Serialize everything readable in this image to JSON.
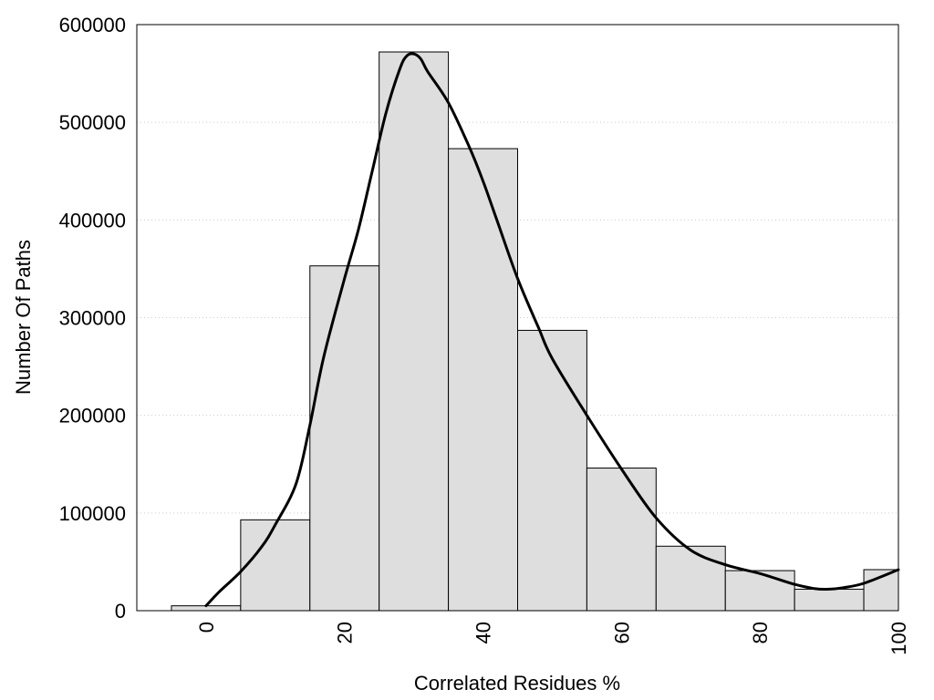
{
  "chart_data": {
    "type": "bar",
    "subtype": "histogram-with-density-curve",
    "title": "",
    "xlabel": "Correlated Residues %",
    "ylabel": "Number Of Paths",
    "xlim": [
      -10,
      100
    ],
    "ylim": [
      0,
      600000
    ],
    "x_ticks": [
      0,
      20,
      40,
      60,
      80,
      100
    ],
    "x_tick_labels": [
      "0",
      "20",
      "40",
      "60",
      "80",
      "100"
    ],
    "y_ticks": [
      0,
      100000,
      200000,
      300000,
      400000,
      500000,
      600000
    ],
    "y_tick_labels": [
      "0",
      "100000",
      "200000",
      "300000",
      "400000",
      "500000",
      "600000"
    ],
    "grid": "horizontal dotted",
    "legend": "none",
    "bar_width": 10,
    "categories": [
      "0",
      "10",
      "20",
      "30",
      "40",
      "50",
      "60",
      "70",
      "80",
      "90",
      "100"
    ],
    "x": [
      0,
      10,
      20,
      30,
      40,
      50,
      60,
      70,
      80,
      90,
      100
    ],
    "values": [
      5000,
      93000,
      353000,
      572000,
      473000,
      287000,
      146000,
      66000,
      41000,
      22000,
      42000
    ],
    "curve": {
      "x": [
        0,
        2,
        5,
        8,
        10,
        13,
        15,
        17,
        20,
        22,
        24,
        26,
        28,
        29,
        30,
        31,
        32,
        35,
        38,
        40,
        42,
        45,
        48,
        50,
        55,
        60,
        65,
        70,
        75,
        80,
        85,
        88,
        90,
        92,
        95,
        100
      ],
      "y": [
        5000,
        20000,
        40000,
        65000,
        88000,
        130000,
        190000,
        260000,
        340000,
        390000,
        450000,
        510000,
        555000,
        568000,
        570000,
        565000,
        552000,
        520000,
        475000,
        440000,
        400000,
        340000,
        290000,
        258000,
        200000,
        145000,
        95000,
        62000,
        47000,
        38000,
        27000,
        22500,
        22000,
        23500,
        28000,
        42000
      ]
    },
    "colors": {
      "bar_fill": "#dedede",
      "bar_stroke": "#000000",
      "curve": "#000000",
      "grid": "#cccccc",
      "frame": "#000000"
    }
  }
}
